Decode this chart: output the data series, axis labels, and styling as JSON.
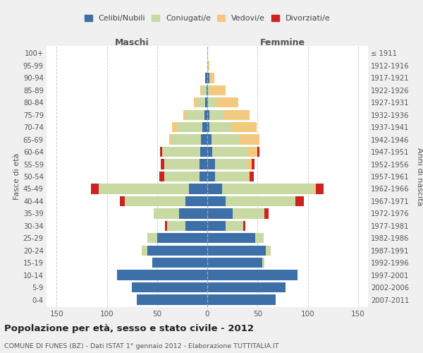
{
  "age_groups": [
    "0-4",
    "5-9",
    "10-14",
    "15-19",
    "20-24",
    "25-29",
    "30-34",
    "35-39",
    "40-44",
    "45-49",
    "50-54",
    "55-59",
    "60-64",
    "65-69",
    "70-74",
    "75-79",
    "80-84",
    "85-89",
    "90-94",
    "95-99",
    "100+"
  ],
  "birth_years": [
    "2007-2011",
    "2002-2006",
    "1997-2001",
    "1992-1996",
    "1987-1991",
    "1982-1986",
    "1977-1981",
    "1972-1976",
    "1967-1971",
    "1962-1966",
    "1957-1961",
    "1952-1956",
    "1947-1951",
    "1942-1946",
    "1937-1941",
    "1932-1936",
    "1927-1931",
    "1922-1926",
    "1917-1921",
    "1912-1916",
    "≤ 1911"
  ],
  "colors": {
    "celibi": "#3d6fa8",
    "coniugati": "#c8d9a3",
    "vedovi": "#f2c97e",
    "divorziati": "#cc2222"
  },
  "male": {
    "celibi": [
      70,
      75,
      90,
      55,
      60,
      50,
      22,
      28,
      22,
      18,
      8,
      8,
      7,
      6,
      5,
      3,
      2,
      1,
      2,
      0,
      0
    ],
    "coniugati": [
      0,
      0,
      0,
      0,
      5,
      10,
      18,
      25,
      60,
      90,
      35,
      35,
      38,
      30,
      25,
      18,
      8,
      4,
      0,
      0,
      0
    ],
    "vedovi": [
      0,
      0,
      0,
      0,
      0,
      0,
      0,
      0,
      0,
      0,
      0,
      0,
      0,
      2,
      5,
      3,
      3,
      2,
      0,
      0,
      0
    ],
    "divorziati": [
      0,
      0,
      0,
      0,
      0,
      0,
      2,
      0,
      5,
      8,
      5,
      3,
      2,
      0,
      0,
      0,
      0,
      0,
      0,
      0,
      0
    ]
  },
  "female": {
    "nubili": [
      68,
      78,
      90,
      55,
      58,
      48,
      18,
      25,
      18,
      15,
      8,
      8,
      5,
      4,
      2,
      2,
      1,
      1,
      2,
      0,
      0
    ],
    "coniugate": [
      0,
      0,
      0,
      2,
      5,
      8,
      18,
      32,
      70,
      90,
      32,
      32,
      35,
      28,
      22,
      15,
      8,
      2,
      0,
      0,
      0
    ],
    "vedove": [
      0,
      0,
      0,
      0,
      0,
      0,
      0,
      0,
      0,
      3,
      2,
      4,
      10,
      20,
      25,
      25,
      22,
      15,
      5,
      2,
      0
    ],
    "divorziate": [
      0,
      0,
      0,
      0,
      0,
      0,
      2,
      4,
      8,
      8,
      4,
      3,
      2,
      0,
      0,
      0,
      0,
      0,
      0,
      0,
      0
    ]
  },
  "title": "Popolazione per età, sesso e stato civile - 2012",
  "subtitle": "COMUNE DI FUNES (BZ) - Dati ISTAT 1° gennaio 2012 - Elaborazione TUTTITALIA.IT",
  "xlabel_left": "Maschi",
  "xlabel_right": "Femmine",
  "ylabel_left": "Fasce di età",
  "ylabel_right": "Anni di nascita",
  "xlim": 160,
  "legend_labels": [
    "Celibi/Nubili",
    "Coniugati/e",
    "Vedovi/e",
    "Divorziati/e"
  ],
  "background_color": "#f0f0f0",
  "plot_background": "#ffffff"
}
